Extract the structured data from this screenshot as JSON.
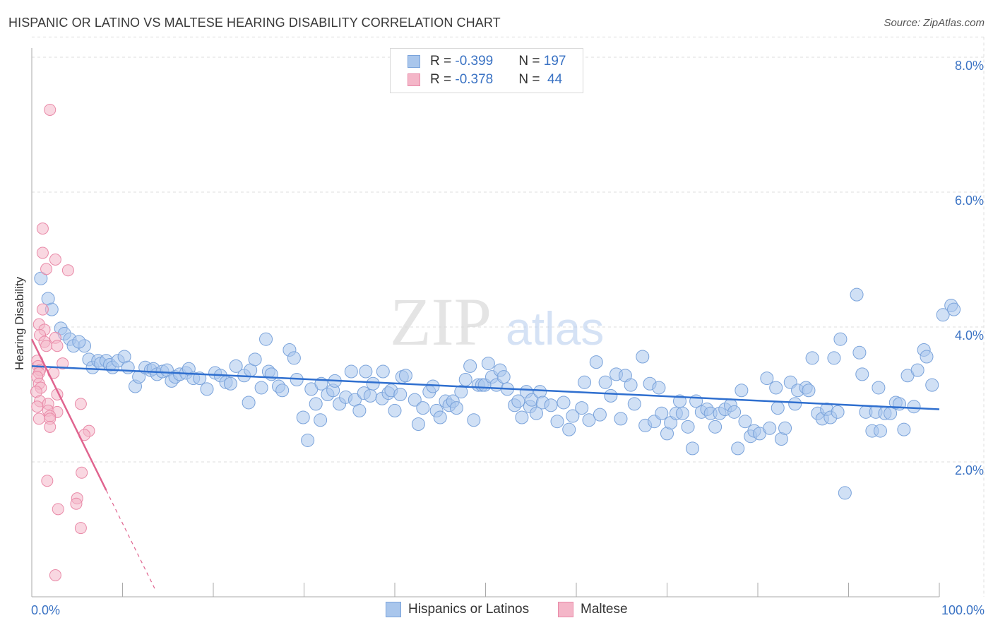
{
  "title": "HISPANIC OR LATINO VS MALTESE HEARING DISABILITY CORRELATION CHART",
  "source": "Source: ZipAtlas.com",
  "watermark": {
    "zip": "ZIP",
    "atlas": "atlas"
  },
  "legend": {
    "rows": [
      {
        "r_label": "R = ",
        "r_value": "-0.399",
        "n_label": "N = ",
        "n_value": "197"
      },
      {
        "r_label": "R = ",
        "r_value": "-0.378",
        "n_label": "N = ",
        "n_value": " 44"
      }
    ]
  },
  "bottom_legend": {
    "series_a": "Hispanics or Latinos",
    "series_b": "Maltese"
  },
  "colors": {
    "blue_fill": "#a9c6ec",
    "blue_stroke": "#7aa3db",
    "blue_line": "#2f6fcf",
    "pink_fill": "#f4b6c8",
    "pink_stroke": "#e98aa8",
    "pink_line": "#e0648f",
    "tick_label": "#3b73c4",
    "grid": "#dddddd"
  },
  "chart_data": {
    "type": "scatter",
    "title": "HISPANIC OR LATINO VS MALTESE HEARING DISABILITY CORRELATION CHART",
    "xlabel": "",
    "ylabel": "Hearing Disability",
    "xlim": [
      0,
      100
    ],
    "ylim": [
      0,
      8.3
    ],
    "x_tick_labels": [
      "0.0%",
      "100.0%"
    ],
    "y_ticks": [
      2,
      4,
      6,
      8
    ],
    "y_tick_labels": [
      "2.0%",
      "4.0%",
      "6.0%",
      "8.0%"
    ],
    "grid": true,
    "legend_position": "top-center",
    "series": [
      {
        "name": "Hispanics or Latinos",
        "r": -0.399,
        "n": 197,
        "trend": {
          "x": [
            0,
            100
          ],
          "y": [
            3.42,
            2.78
          ]
        },
        "points": [
          [
            1.0,
            4.72
          ],
          [
            1.8,
            4.42
          ],
          [
            2.2,
            4.26
          ],
          [
            3.2,
            3.98
          ],
          [
            3.6,
            3.9
          ],
          [
            4.2,
            3.82
          ],
          [
            4.6,
            3.72
          ],
          [
            5.8,
            3.72
          ],
          [
            5.2,
            3.78
          ],
          [
            6.3,
            3.52
          ],
          [
            6.7,
            3.4
          ],
          [
            7.3,
            3.5
          ],
          [
            7.6,
            3.46
          ],
          [
            8.2,
            3.5
          ],
          [
            8.6,
            3.44
          ],
          [
            8.9,
            3.4
          ],
          [
            9.5,
            3.5
          ],
          [
            10.2,
            3.56
          ],
          [
            10.6,
            3.4
          ],
          [
            11.4,
            3.12
          ],
          [
            11.8,
            3.26
          ],
          [
            12.5,
            3.4
          ],
          [
            13.1,
            3.36
          ],
          [
            13.4,
            3.38
          ],
          [
            13.8,
            3.3
          ],
          [
            14.4,
            3.34
          ],
          [
            14.9,
            3.36
          ],
          [
            15.4,
            3.2
          ],
          [
            15.8,
            3.26
          ],
          [
            16.3,
            3.3
          ],
          [
            17.0,
            3.32
          ],
          [
            17.3,
            3.38
          ],
          [
            17.8,
            3.24
          ],
          [
            18.5,
            3.24
          ],
          [
            19.3,
            3.08
          ],
          [
            20.2,
            3.32
          ],
          [
            20.8,
            3.28
          ],
          [
            21.4,
            3.18
          ],
          [
            21.9,
            3.16
          ],
          [
            22.5,
            3.42
          ],
          [
            23.4,
            3.28
          ],
          [
            23.9,
            2.88
          ],
          [
            24.1,
            3.36
          ],
          [
            24.6,
            3.52
          ],
          [
            25.3,
            3.1
          ],
          [
            25.8,
            3.82
          ],
          [
            26.1,
            3.34
          ],
          [
            26.4,
            3.3
          ],
          [
            27.2,
            3.12
          ],
          [
            27.6,
            3.06
          ],
          [
            28.4,
            3.66
          ],
          [
            28.9,
            3.54
          ],
          [
            29.2,
            3.22
          ],
          [
            29.9,
            2.66
          ],
          [
            30.4,
            2.32
          ],
          [
            30.8,
            3.08
          ],
          [
            31.3,
            2.86
          ],
          [
            31.8,
            2.62
          ],
          [
            31.9,
            3.16
          ],
          [
            32.6,
            3.0
          ],
          [
            33.2,
            3.06
          ],
          [
            33.4,
            3.2
          ],
          [
            33.9,
            2.86
          ],
          [
            34.6,
            2.96
          ],
          [
            35.2,
            3.34
          ],
          [
            35.6,
            2.92
          ],
          [
            36.1,
            2.76
          ],
          [
            36.6,
            3.02
          ],
          [
            36.8,
            3.34
          ],
          [
            37.3,
            2.98
          ],
          [
            37.6,
            3.16
          ],
          [
            38.6,
            2.94
          ],
          [
            38.7,
            3.34
          ],
          [
            39.3,
            3.02
          ],
          [
            39.6,
            3.06
          ],
          [
            40.0,
            2.76
          ],
          [
            40.6,
            3.0
          ],
          [
            40.8,
            3.26
          ],
          [
            41.2,
            3.28
          ],
          [
            42.2,
            2.92
          ],
          [
            42.6,
            2.56
          ],
          [
            43.1,
            2.8
          ],
          [
            43.8,
            3.04
          ],
          [
            44.2,
            3.12
          ],
          [
            44.6,
            2.76
          ],
          [
            45.0,
            2.66
          ],
          [
            45.6,
            2.9
          ],
          [
            46.0,
            2.84
          ],
          [
            46.4,
            2.9
          ],
          [
            46.8,
            2.8
          ],
          [
            47.3,
            3.04
          ],
          [
            47.8,
            3.22
          ],
          [
            48.3,
            3.42
          ],
          [
            48.7,
            2.62
          ],
          [
            49.2,
            3.14
          ],
          [
            49.6,
            3.14
          ],
          [
            49.9,
            3.14
          ],
          [
            50.3,
            3.46
          ],
          [
            50.7,
            3.26
          ],
          [
            51.2,
            3.14
          ],
          [
            51.6,
            3.36
          ],
          [
            52.0,
            3.26
          ],
          [
            52.4,
            3.08
          ],
          [
            53.2,
            2.84
          ],
          [
            53.6,
            2.9
          ],
          [
            54.0,
            2.66
          ],
          [
            54.5,
            3.04
          ],
          [
            54.9,
            2.82
          ],
          [
            55.1,
            2.92
          ],
          [
            55.6,
            2.72
          ],
          [
            56.0,
            3.04
          ],
          [
            56.3,
            2.88
          ],
          [
            57.2,
            2.84
          ],
          [
            57.9,
            2.6
          ],
          [
            58.6,
            2.88
          ],
          [
            59.2,
            2.48
          ],
          [
            59.6,
            2.68
          ],
          [
            60.6,
            2.8
          ],
          [
            60.9,
            3.18
          ],
          [
            61.4,
            2.62
          ],
          [
            62.2,
            3.48
          ],
          [
            62.6,
            2.7
          ],
          [
            63.2,
            3.18
          ],
          [
            63.8,
            2.98
          ],
          [
            64.4,
            3.3
          ],
          [
            64.9,
            2.64
          ],
          [
            65.4,
            3.28
          ],
          [
            66.0,
            3.14
          ],
          [
            66.4,
            2.86
          ],
          [
            67.3,
            3.56
          ],
          [
            67.6,
            2.54
          ],
          [
            68.1,
            3.16
          ],
          [
            68.6,
            2.6
          ],
          [
            69.1,
            3.1
          ],
          [
            69.4,
            2.72
          ],
          [
            70.0,
            2.42
          ],
          [
            70.4,
            2.58
          ],
          [
            71.0,
            2.72
          ],
          [
            71.4,
            2.9
          ],
          [
            71.7,
            2.72
          ],
          [
            72.3,
            2.52
          ],
          [
            72.8,
            2.2
          ],
          [
            73.2,
            2.9
          ],
          [
            73.8,
            2.74
          ],
          [
            74.4,
            2.78
          ],
          [
            74.8,
            2.72
          ],
          [
            75.3,
            2.52
          ],
          [
            75.8,
            2.72
          ],
          [
            76.4,
            2.78
          ],
          [
            77.0,
            2.84
          ],
          [
            77.4,
            2.74
          ],
          [
            77.8,
            2.2
          ],
          [
            78.2,
            3.06
          ],
          [
            78.6,
            2.6
          ],
          [
            79.2,
            2.38
          ],
          [
            79.6,
            2.46
          ],
          [
            80.2,
            2.42
          ],
          [
            81.0,
            3.24
          ],
          [
            81.3,
            2.5
          ],
          [
            82.0,
            3.1
          ],
          [
            82.2,
            2.8
          ],
          [
            82.6,
            2.34
          ],
          [
            83.0,
            2.5
          ],
          [
            83.6,
            3.18
          ],
          [
            84.1,
            2.86
          ],
          [
            84.4,
            3.06
          ],
          [
            85.3,
            3.1
          ],
          [
            85.6,
            3.06
          ],
          [
            86.0,
            3.54
          ],
          [
            86.6,
            2.72
          ],
          [
            87.1,
            2.64
          ],
          [
            87.6,
            2.78
          ],
          [
            88.0,
            2.66
          ],
          [
            88.4,
            3.54
          ],
          [
            88.8,
            2.74
          ],
          [
            89.1,
            3.82
          ],
          [
            89.6,
            1.54
          ],
          [
            90.9,
            4.48
          ],
          [
            91.2,
            3.62
          ],
          [
            91.5,
            3.3
          ],
          [
            91.9,
            2.74
          ],
          [
            92.6,
            2.46
          ],
          [
            93.0,
            2.74
          ],
          [
            93.3,
            3.1
          ],
          [
            93.5,
            2.46
          ],
          [
            94.0,
            2.72
          ],
          [
            94.6,
            2.72
          ],
          [
            95.2,
            2.88
          ],
          [
            95.6,
            2.86
          ],
          [
            96.1,
            2.48
          ],
          [
            96.5,
            3.28
          ],
          [
            97.2,
            2.82
          ],
          [
            97.6,
            3.36
          ],
          [
            98.3,
            3.66
          ],
          [
            98.6,
            3.56
          ],
          [
            99.2,
            3.14
          ],
          [
            100.4,
            4.18
          ],
          [
            101.3,
            4.32
          ],
          [
            101.6,
            4.26
          ]
        ]
      },
      {
        "name": "Maltese",
        "r": -0.378,
        "n": 44,
        "trend": {
          "x": [
            0,
            8.2,
            13.7
          ],
          "y": [
            3.82,
            1.58,
            0.08
          ]
        },
        "points": [
          [
            2.0,
            7.22
          ],
          [
            1.2,
            5.46
          ],
          [
            1.2,
            5.1
          ],
          [
            2.6,
            5.0
          ],
          [
            1.6,
            4.86
          ],
          [
            4.0,
            4.84
          ],
          [
            1.2,
            4.26
          ],
          [
            0.8,
            4.04
          ],
          [
            1.4,
            3.96
          ],
          [
            0.9,
            3.88
          ],
          [
            2.6,
            3.84
          ],
          [
            1.4,
            3.78
          ],
          [
            1.6,
            3.72
          ],
          [
            2.8,
            3.72
          ],
          [
            0.6,
            3.5
          ],
          [
            3.4,
            3.46
          ],
          [
            0.7,
            3.42
          ],
          [
            0.9,
            3.36
          ],
          [
            0.8,
            3.32
          ],
          [
            2.4,
            3.32
          ],
          [
            0.6,
            3.26
          ],
          [
            0.8,
            3.16
          ],
          [
            1.0,
            3.1
          ],
          [
            0.5,
            3.04
          ],
          [
            2.8,
            3.0
          ],
          [
            0.9,
            2.9
          ],
          [
            1.8,
            2.86
          ],
          [
            5.4,
            2.86
          ],
          [
            0.6,
            2.82
          ],
          [
            1.8,
            2.76
          ],
          [
            2.8,
            2.74
          ],
          [
            2.0,
            2.68
          ],
          [
            0.8,
            2.64
          ],
          [
            2.0,
            2.64
          ],
          [
            2.0,
            2.52
          ],
          [
            6.3,
            2.46
          ],
          [
            5.8,
            2.4
          ],
          [
            5.5,
            1.84
          ],
          [
            1.7,
            1.72
          ],
          [
            5.0,
            1.46
          ],
          [
            4.9,
            1.38
          ],
          [
            2.9,
            1.3
          ],
          [
            5.4,
            1.02
          ],
          [
            2.6,
            0.32
          ]
        ]
      }
    ]
  }
}
